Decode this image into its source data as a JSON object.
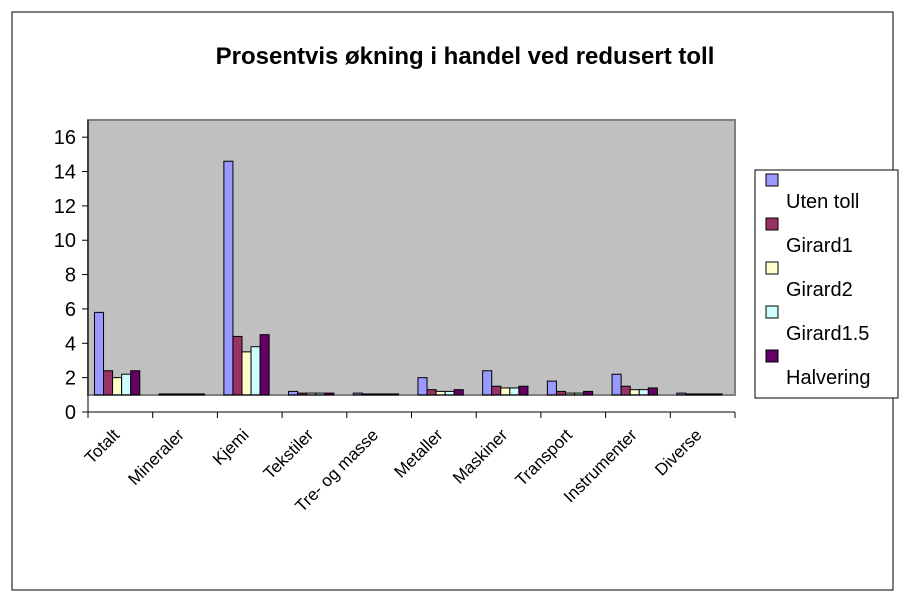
{
  "chart_data": {
    "type": "bar",
    "title": "Prosentvis økning i handel ved redusert toll",
    "categories": [
      "Totalt",
      "Mineraler",
      "Kjemi",
      "Tekstiler",
      "Tre- og masse",
      "Metaller",
      "Maskiner",
      "Transport",
      "Instrumenter",
      "Diverse"
    ],
    "series": [
      {
        "name": "Uten toll",
        "color": "#9999ff",
        "values": [
          5.8,
          1.05,
          14.6,
          1.2,
          1.1,
          2.0,
          2.4,
          1.8,
          2.2,
          1.1
        ]
      },
      {
        "name": "Girard1",
        "color": "#993366",
        "values": [
          2.4,
          1.05,
          4.4,
          1.1,
          1.05,
          1.3,
          1.5,
          1.2,
          1.5,
          1.05
        ]
      },
      {
        "name": "Girard2",
        "color": "#ffffcc",
        "values": [
          2.0,
          1.05,
          3.5,
          1.1,
          1.05,
          1.2,
          1.4,
          1.1,
          1.3,
          1.05
        ]
      },
      {
        "name": "Girard1.5",
        "color": "#ccffff",
        "values": [
          2.2,
          1.05,
          3.8,
          1.1,
          1.05,
          1.2,
          1.4,
          1.1,
          1.3,
          1.05
        ]
      },
      {
        "name": "Halvering",
        "color": "#660066",
        "values": [
          2.4,
          1.05,
          4.5,
          1.1,
          1.05,
          1.3,
          1.5,
          1.2,
          1.4,
          1.05
        ]
      }
    ],
    "ylim": [
      0,
      17
    ],
    "yticks": [
      0,
      2,
      4,
      6,
      8,
      10,
      12,
      14,
      16
    ],
    "bar_base": 1,
    "legend": "right"
  }
}
